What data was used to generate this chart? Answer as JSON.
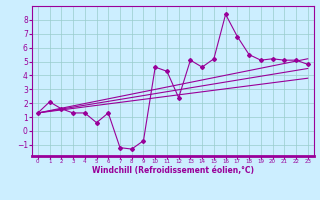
{
  "xlabel": "Windchill (Refroidissement éolien,°C)",
  "xlim": [
    -0.5,
    23.5
  ],
  "ylim": [
    -1.8,
    9.0
  ],
  "yticks": [
    -1,
    0,
    1,
    2,
    3,
    4,
    5,
    6,
    7,
    8
  ],
  "xticks": [
    0,
    1,
    2,
    3,
    4,
    5,
    6,
    7,
    8,
    9,
    10,
    11,
    12,
    13,
    14,
    15,
    16,
    17,
    18,
    19,
    20,
    21,
    22,
    23
  ],
  "main_line_x": [
    0,
    1,
    2,
    3,
    4,
    5,
    6,
    7,
    8,
    9,
    10,
    11,
    12,
    13,
    14,
    15,
    16,
    17,
    18,
    19,
    20,
    21,
    22,
    23
  ],
  "main_line_y": [
    1.3,
    2.1,
    1.6,
    1.3,
    1.3,
    0.6,
    1.3,
    -1.2,
    -1.3,
    -0.7,
    4.6,
    4.3,
    2.4,
    5.1,
    4.6,
    5.2,
    8.4,
    6.8,
    5.5,
    5.1,
    5.2,
    5.1,
    5.1,
    4.8
  ],
  "upper_line_x": [
    0,
    23
  ],
  "upper_line_y": [
    1.3,
    5.2
  ],
  "lower_line_x": [
    0,
    23
  ],
  "lower_line_y": [
    1.3,
    3.8
  ],
  "middle_line_x": [
    0,
    23
  ],
  "middle_line_y": [
    1.3,
    4.5
  ],
  "line_color": "#990099",
  "bg_color": "#cceeff",
  "grid_color": "#99cccc"
}
